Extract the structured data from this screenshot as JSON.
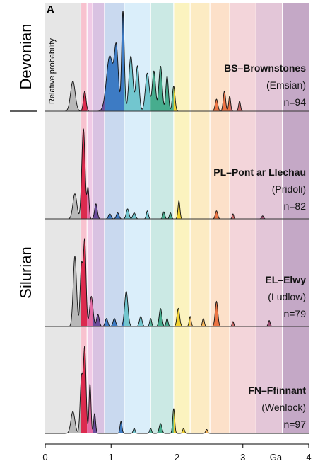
{
  "figure": {
    "panel_letter": "A",
    "y_axis_label": "Relative probability",
    "x_axis_unit": "Ga",
    "period_labels": [
      "Devonian",
      "Silurian"
    ]
  },
  "colors": {
    "band_colors": [
      "#e6e6e6",
      "#f8c2cf",
      "#f0cae6",
      "#d9c2e2",
      "#c9d9ef",
      "#daeefa",
      "#cbe9e4",
      "#fbf3bf",
      "#fcebc3",
      "#fce0c9",
      "#f3d5da",
      "#e3c6d8",
      "#c4a8c6",
      "#b3b3b3"
    ],
    "fill_colors": [
      "#b8b8b8",
      "#dc2a4e",
      "#e36aa3",
      "#6b4c9a",
      "#3d7bc4",
      "#72c6cf",
      "#47ad8e",
      "#f2d22e",
      "#f7b55a",
      "#ec7444",
      "#cf6a6a",
      "#9c4e72",
      "#7b3a64"
    ]
  },
  "chart_data": {
    "type": "area",
    "x_unit": "Ga",
    "xlim": [
      0,
      4
    ],
    "x_ticks": [
      {
        "value": 0,
        "label": "0"
      },
      {
        "value": 1,
        "label": "1"
      },
      {
        "value": 2,
        "label": "2"
      },
      {
        "value": 3,
        "label": "3"
      },
      {
        "value": 3.5,
        "label": "Ga"
      },
      {
        "value": 4,
        "label": "4"
      }
    ],
    "band_boundaries": [
      0,
      0.541,
      0.635,
      0.72,
      0.9,
      1.2,
      1.6,
      1.95,
      2.2,
      2.5,
      2.8,
      3.2,
      3.6,
      4.0
    ],
    "series": [
      {
        "id": "BS",
        "name": "BS–Brownstones",
        "age": "(Emsian)",
        "n": "n=94",
        "period": "Devonian",
        "peaks": [
          {
            "x": 0.42,
            "w": 0.035,
            "h": 0.3
          },
          {
            "x": 0.6,
            "w": 0.02,
            "h": 0.2
          },
          {
            "x": 0.98,
            "w": 0.05,
            "h": 0.55
          },
          {
            "x": 1.08,
            "w": 0.03,
            "h": 0.6
          },
          {
            "x": 1.18,
            "w": 0.02,
            "h": 1.0
          },
          {
            "x": 1.3,
            "w": 0.03,
            "h": 0.55
          },
          {
            "x": 1.4,
            "w": 0.025,
            "h": 0.45
          },
          {
            "x": 1.55,
            "w": 0.03,
            "h": 0.38
          },
          {
            "x": 1.65,
            "w": 0.025,
            "h": 0.4
          },
          {
            "x": 1.75,
            "w": 0.025,
            "h": 0.45
          },
          {
            "x": 1.85,
            "w": 0.02,
            "h": 0.35
          },
          {
            "x": 1.95,
            "w": 0.02,
            "h": 0.25
          },
          {
            "x": 2.6,
            "w": 0.02,
            "h": 0.12
          },
          {
            "x": 2.72,
            "w": 0.018,
            "h": 0.2
          },
          {
            "x": 2.8,
            "w": 0.015,
            "h": 0.15
          },
          {
            "x": 2.95,
            "w": 0.015,
            "h": 0.1
          }
        ]
      },
      {
        "id": "PL",
        "name": "PL–Pont ar Llechau",
        "age": "(Pridoli)",
        "n": "n=82",
        "period": "Silurian",
        "peaks": [
          {
            "x": 0.45,
            "w": 0.03,
            "h": 0.25
          },
          {
            "x": 0.58,
            "w": 0.025,
            "h": 0.9
          },
          {
            "x": 0.65,
            "w": 0.015,
            "h": 0.3
          },
          {
            "x": 0.77,
            "w": 0.02,
            "h": 0.15
          },
          {
            "x": 0.98,
            "w": 0.02,
            "h": 0.05
          },
          {
            "x": 1.1,
            "w": 0.02,
            "h": 0.06
          },
          {
            "x": 1.25,
            "w": 0.02,
            "h": 0.1
          },
          {
            "x": 1.35,
            "w": 0.02,
            "h": 0.06
          },
          {
            "x": 1.55,
            "w": 0.015,
            "h": 0.08
          },
          {
            "x": 1.8,
            "w": 0.015,
            "h": 0.07
          },
          {
            "x": 1.9,
            "w": 0.015,
            "h": 0.06
          },
          {
            "x": 2.03,
            "w": 0.015,
            "h": 0.18
          },
          {
            "x": 2.6,
            "w": 0.018,
            "h": 0.08
          },
          {
            "x": 2.85,
            "w": 0.012,
            "h": 0.05
          },
          {
            "x": 3.3,
            "w": 0.015,
            "h": 0.03
          }
        ]
      },
      {
        "id": "EL",
        "name": "EL–Elwy",
        "age": "(Ludlow)",
        "n": "n=79",
        "period": "Silurian",
        "peaks": [
          {
            "x": 0.45,
            "w": 0.025,
            "h": 0.7
          },
          {
            "x": 0.55,
            "w": 0.02,
            "h": 0.6
          },
          {
            "x": 0.6,
            "w": 0.02,
            "h": 0.85
          },
          {
            "x": 0.7,
            "w": 0.025,
            "h": 0.3
          },
          {
            "x": 0.8,
            "w": 0.02,
            "h": 0.12
          },
          {
            "x": 0.93,
            "w": 0.02,
            "h": 0.08
          },
          {
            "x": 1.05,
            "w": 0.02,
            "h": 0.08
          },
          {
            "x": 1.23,
            "w": 0.025,
            "h": 0.35
          },
          {
            "x": 1.45,
            "w": 0.02,
            "h": 0.1
          },
          {
            "x": 1.6,
            "w": 0.015,
            "h": 0.08
          },
          {
            "x": 1.75,
            "w": 0.02,
            "h": 0.18
          },
          {
            "x": 1.85,
            "w": 0.015,
            "h": 0.08
          },
          {
            "x": 2.02,
            "w": 0.02,
            "h": 0.18
          },
          {
            "x": 2.2,
            "w": 0.015,
            "h": 0.1
          },
          {
            "x": 2.4,
            "w": 0.015,
            "h": 0.08
          },
          {
            "x": 2.6,
            "w": 0.02,
            "h": 0.25
          },
          {
            "x": 2.85,
            "w": 0.012,
            "h": 0.05
          },
          {
            "x": 3.4,
            "w": 0.015,
            "h": 0.06
          }
        ]
      },
      {
        "id": "FN",
        "name": "FN–Ffinnant",
        "age": "(Wenlock)",
        "n": "n=97",
        "period": "Silurian",
        "peaks": [
          {
            "x": 0.42,
            "w": 0.03,
            "h": 0.22
          },
          {
            "x": 0.55,
            "w": 0.02,
            "h": 0.55
          },
          {
            "x": 0.6,
            "w": 0.02,
            "h": 0.85
          },
          {
            "x": 0.68,
            "w": 0.015,
            "h": 0.5
          },
          {
            "x": 0.75,
            "w": 0.015,
            "h": 0.2
          },
          {
            "x": 1.15,
            "w": 0.015,
            "h": 0.12
          },
          {
            "x": 1.35,
            "w": 0.015,
            "h": 0.05
          },
          {
            "x": 1.6,
            "w": 0.015,
            "h": 0.05
          },
          {
            "x": 1.75,
            "w": 0.02,
            "h": 0.1
          },
          {
            "x": 1.95,
            "w": 0.015,
            "h": 0.25
          },
          {
            "x": 2.1,
            "w": 0.015,
            "h": 0.05
          },
          {
            "x": 2.45,
            "w": 0.015,
            "h": 0.04
          }
        ]
      }
    ]
  }
}
